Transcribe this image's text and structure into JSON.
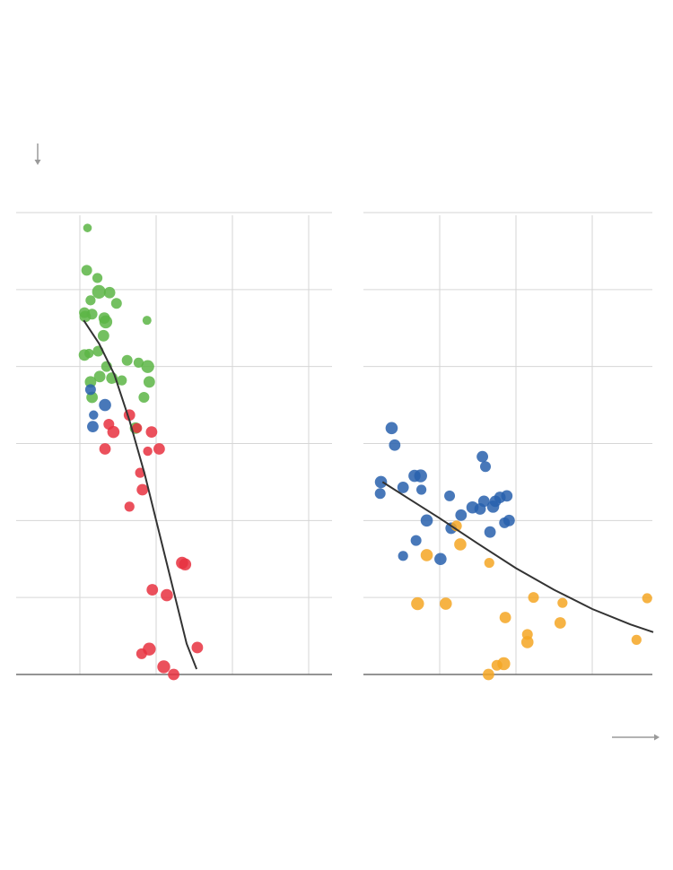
{
  "colors": {
    "green": "#5cb545",
    "blue": "#2860ad",
    "red": "#e8313f",
    "orange": "#f5a623",
    "fit_line": "#333333",
    "grid": "#d6d6d6",
    "axis": "#555555",
    "arrow": "#9a9a9a"
  },
  "chart_data": [
    {
      "type": "scatter",
      "title": "",
      "xlabel": "",
      "ylabel": "",
      "xlim": [
        0,
        4.15
      ],
      "ylim": [
        0,
        6
      ],
      "grid": true,
      "legend": "none",
      "point_size_encodes_value": true,
      "series": [
        {
          "color_key": "green",
          "points": [
            {
              "x": 0.1,
              "y": 5.8,
              "s": 0.2
            },
            {
              "x": 0.09,
              "y": 5.25,
              "s": 0.5
            },
            {
              "x": 0.23,
              "y": 5.15,
              "s": 0.4
            },
            {
              "x": 0.25,
              "y": 4.97,
              "s": 0.9
            },
            {
              "x": 0.39,
              "y": 4.96,
              "s": 0.6
            },
            {
              "x": 0.14,
              "y": 4.86,
              "s": 0.4
            },
            {
              "x": 0.48,
              "y": 4.82,
              "s": 0.5
            },
            {
              "x": 0.06,
              "y": 4.7,
              "s": 0.5
            },
            {
              "x": 0.16,
              "y": 4.68,
              "s": 0.5
            },
            {
              "x": 0.07,
              "y": 4.65,
              "s": 0.6
            },
            {
              "x": 0.32,
              "y": 4.63,
              "s": 0.6
            },
            {
              "x": 0.34,
              "y": 4.58,
              "s": 0.8
            },
            {
              "x": 0.88,
              "y": 4.6,
              "s": 0.25
            },
            {
              "x": 0.31,
              "y": 4.4,
              "s": 0.6
            },
            {
              "x": 0.24,
              "y": 4.2,
              "s": 0.5
            },
            {
              "x": 0.06,
              "y": 4.15,
              "s": 0.6
            },
            {
              "x": 0.12,
              "y": 4.17,
              "s": 0.3
            },
            {
              "x": 0.62,
              "y": 4.08,
              "s": 0.5
            },
            {
              "x": 0.77,
              "y": 4.05,
              "s": 0.4
            },
            {
              "x": 0.89,
              "y": 4.0,
              "s": 0.8
            },
            {
              "x": 0.35,
              "y": 4.0,
              "s": 0.5
            },
            {
              "x": 0.26,
              "y": 3.87,
              "s": 0.6
            },
            {
              "x": 0.42,
              "y": 3.85,
              "s": 0.6
            },
            {
              "x": 0.55,
              "y": 3.82,
              "s": 0.4
            },
            {
              "x": 0.14,
              "y": 3.8,
              "s": 0.6
            },
            {
              "x": 0.91,
              "y": 3.8,
              "s": 0.6
            },
            {
              "x": 0.16,
              "y": 3.6,
              "s": 0.6
            },
            {
              "x": 0.84,
              "y": 3.6,
              "s": 0.5
            },
            {
              "x": 0.73,
              "y": 3.2,
              "s": 0.6
            }
          ]
        },
        {
          "color_key": "blue",
          "points": [
            {
              "x": 0.14,
              "y": 3.7,
              "s": 0.5
            },
            {
              "x": 0.33,
              "y": 3.5,
              "s": 0.7
            },
            {
              "x": 0.18,
              "y": 3.37,
              "s": 0.3
            },
            {
              "x": 0.17,
              "y": 3.22,
              "s": 0.6
            }
          ]
        },
        {
          "color_key": "red",
          "points": [
            {
              "x": 0.65,
              "y": 3.37,
              "s": 0.6
            },
            {
              "x": 0.38,
              "y": 3.25,
              "s": 0.5
            },
            {
              "x": 0.75,
              "y": 3.2,
              "s": 0.4
            },
            {
              "x": 0.44,
              "y": 3.15,
              "s": 0.7
            },
            {
              "x": 0.94,
              "y": 3.15,
              "s": 0.6
            },
            {
              "x": 0.33,
              "y": 2.93,
              "s": 0.6
            },
            {
              "x": 1.04,
              "y": 2.93,
              "s": 0.6
            },
            {
              "x": 0.89,
              "y": 2.9,
              "s": 0.3
            },
            {
              "x": 0.79,
              "y": 2.62,
              "s": 0.4
            },
            {
              "x": 0.82,
              "y": 2.4,
              "s": 0.6
            },
            {
              "x": 0.65,
              "y": 2.18,
              "s": 0.4
            },
            {
              "x": 1.34,
              "y": 1.45,
              "s": 0.7
            },
            {
              "x": 1.38,
              "y": 1.43,
              "s": 0.7
            },
            {
              "x": 0.95,
              "y": 1.1,
              "s": 0.6
            },
            {
              "x": 1.14,
              "y": 1.03,
              "s": 0.7
            },
            {
              "x": 1.54,
              "y": 0.35,
              "s": 0.6
            },
            {
              "x": 0.91,
              "y": 0.33,
              "s": 0.8
            },
            {
              "x": 0.81,
              "y": 0.27,
              "s": 0.5
            },
            {
              "x": 1.1,
              "y": 0.1,
              "s": 0.8
            },
            {
              "x": 1.23,
              "y": 0.0,
              "s": 0.6
            }
          ]
        }
      ],
      "fit_line": [
        {
          "x": 0.05,
          "y": 4.6
        },
        {
          "x": 0.25,
          "y": 4.3
        },
        {
          "x": 0.45,
          "y": 3.9
        },
        {
          "x": 0.65,
          "y": 3.3
        },
        {
          "x": 0.85,
          "y": 2.6
        },
        {
          "x": 1.05,
          "y": 1.8
        },
        {
          "x": 1.25,
          "y": 1.0
        },
        {
          "x": 1.4,
          "y": 0.4
        },
        {
          "x": 1.53,
          "y": 0.07
        }
      ]
    },
    {
      "type": "scatter",
      "title": "",
      "xlabel": "",
      "ylabel": "",
      "xlim": [
        0,
        3.8
      ],
      "ylim": [
        0,
        6
      ],
      "grid": true,
      "legend": "none",
      "point_size_encodes_value": true,
      "series": [
        {
          "color_key": "blue",
          "points": [
            {
              "x": 0.37,
              "y": 3.2,
              "s": 0.7
            },
            {
              "x": 0.41,
              "y": 2.98,
              "s": 0.6
            },
            {
              "x": 1.56,
              "y": 2.83,
              "s": 0.6
            },
            {
              "x": 1.6,
              "y": 2.7,
              "s": 0.5
            },
            {
              "x": 0.67,
              "y": 2.58,
              "s": 0.7
            },
            {
              "x": 0.75,
              "y": 2.58,
              "s": 0.8
            },
            {
              "x": 0.23,
              "y": 2.5,
              "s": 0.7
            },
            {
              "x": 0.52,
              "y": 2.43,
              "s": 0.6
            },
            {
              "x": 0.76,
              "y": 2.4,
              "s": 0.4
            },
            {
              "x": 0.22,
              "y": 2.35,
              "s": 0.5
            },
            {
              "x": 1.13,
              "y": 2.32,
              "s": 0.5
            },
            {
              "x": 1.88,
              "y": 2.32,
              "s": 0.6
            },
            {
              "x": 1.58,
              "y": 2.25,
              "s": 0.6
            },
            {
              "x": 1.73,
              "y": 2.25,
              "s": 0.6
            },
            {
              "x": 1.79,
              "y": 2.3,
              "s": 0.6
            },
            {
              "x": 1.7,
              "y": 2.18,
              "s": 0.7
            },
            {
              "x": 1.43,
              "y": 2.17,
              "s": 0.7
            },
            {
              "x": 1.53,
              "y": 2.15,
              "s": 0.6
            },
            {
              "x": 1.28,
              "y": 2.07,
              "s": 0.6
            },
            {
              "x": 0.83,
              "y": 2.0,
              "s": 0.7
            },
            {
              "x": 1.91,
              "y": 2.0,
              "s": 0.6
            },
            {
              "x": 1.85,
              "y": 1.97,
              "s": 0.5
            },
            {
              "x": 1.15,
              "y": 1.9,
              "s": 0.6
            },
            {
              "x": 1.66,
              "y": 1.85,
              "s": 0.6
            },
            {
              "x": 0.69,
              "y": 1.74,
              "s": 0.5
            },
            {
              "x": 0.52,
              "y": 1.54,
              "s": 0.4
            },
            {
              "x": 1.01,
              "y": 1.5,
              "s": 0.7
            }
          ]
        },
        {
          "color_key": "orange",
          "points": [
            {
              "x": 1.22,
              "y": 1.93,
              "s": 0.5
            },
            {
              "x": 1.27,
              "y": 1.69,
              "s": 0.7
            },
            {
              "x": 0.83,
              "y": 1.55,
              "s": 0.7
            },
            {
              "x": 1.65,
              "y": 1.45,
              "s": 0.4
            },
            {
              "x": 2.23,
              "y": 1.0,
              "s": 0.5
            },
            {
              "x": 2.61,
              "y": 0.93,
              "s": 0.4
            },
            {
              "x": 3.72,
              "y": 0.99,
              "s": 0.4
            },
            {
              "x": 0.71,
              "y": 0.92,
              "s": 0.8
            },
            {
              "x": 1.08,
              "y": 0.92,
              "s": 0.7
            },
            {
              "x": 1.86,
              "y": 0.74,
              "s": 0.6
            },
            {
              "x": 2.58,
              "y": 0.67,
              "s": 0.6
            },
            {
              "x": 2.15,
              "y": 0.52,
              "s": 0.5
            },
            {
              "x": 3.58,
              "y": 0.45,
              "s": 0.4
            },
            {
              "x": 2.15,
              "y": 0.42,
              "s": 0.7
            },
            {
              "x": 1.84,
              "y": 0.14,
              "s": 0.8
            },
            {
              "x": 1.75,
              "y": 0.12,
              "s": 0.5
            },
            {
              "x": 1.64,
              "y": 0.0,
              "s": 0.6
            }
          ]
        }
      ],
      "fit_line": [
        {
          "x": 0.25,
          "y": 2.5
        },
        {
          "x": 0.6,
          "y": 2.28
        },
        {
          "x": 1.0,
          "y": 2.03
        },
        {
          "x": 1.5,
          "y": 1.7
        },
        {
          "x": 2.0,
          "y": 1.38
        },
        {
          "x": 2.5,
          "y": 1.1
        },
        {
          "x": 3.0,
          "y": 0.85
        },
        {
          "x": 3.5,
          "y": 0.65
        },
        {
          "x": 3.8,
          "y": 0.55
        }
      ]
    }
  ]
}
